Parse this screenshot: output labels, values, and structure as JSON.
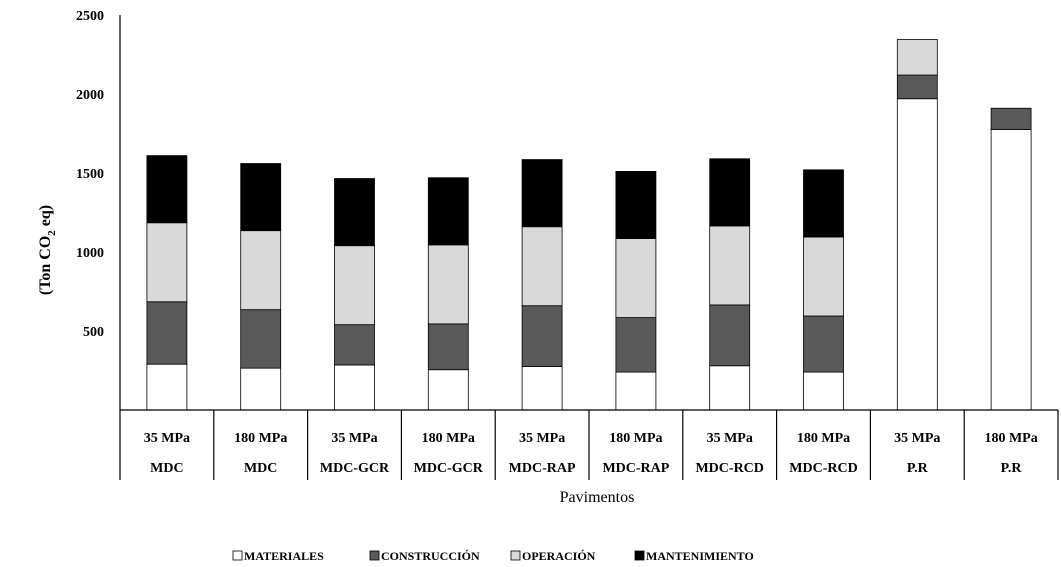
{
  "chart_data": {
    "type": "bar",
    "stacked": true,
    "xlabel": "Pavimentos",
    "ylabel": {
      "prefix": "(Ton CO",
      "sub": "2",
      "suffix": " eq)"
    },
    "ylim": [
      0,
      2500
    ],
    "yticks": [
      500,
      1000,
      1500,
      2000,
      2500
    ],
    "grid": false,
    "legend_position": "bottom",
    "categories": [
      {
        "strength": "35 MPa",
        "pavement": "MDC"
      },
      {
        "strength": "180 MPa",
        "pavement": "MDC"
      },
      {
        "strength": "35 MPa",
        "pavement": "MDC-GCR"
      },
      {
        "strength": "180 MPa",
        "pavement": "MDC-GCR"
      },
      {
        "strength": "35 MPa",
        "pavement": "MDC-RAP"
      },
      {
        "strength": "180 MPa",
        "pavement": "MDC-RAP"
      },
      {
        "strength": "35 MPa",
        "pavement": "MDC-RCD"
      },
      {
        "strength": "180 MPa",
        "pavement": "MDC-RCD"
      },
      {
        "strength": "35 MPa",
        "pavement": "P.R"
      },
      {
        "strength": "180 MPa",
        "pavement": "P.R"
      }
    ],
    "series": [
      {
        "name": "MATERIALES",
        "color": "#ffffff",
        "values": [
          290,
          265,
          285,
          255,
          275,
          240,
          280,
          240,
          1970,
          1775
        ]
      },
      {
        "name": "CONSTRUCCIÓN",
        "color": "#595959",
        "values": [
          395,
          370,
          255,
          290,
          385,
          345,
          385,
          355,
          150,
          135
        ]
      },
      {
        "name": "OPERACIÓN",
        "color": "#d9d9d9",
        "values": [
          500,
          500,
          500,
          500,
          500,
          500,
          500,
          500,
          225,
          0
        ]
      },
      {
        "name": "MANTENIMIENTO",
        "color": "#000000",
        "values": [
          425,
          425,
          425,
          425,
          425,
          425,
          425,
          425,
          0,
          0
        ]
      }
    ]
  }
}
